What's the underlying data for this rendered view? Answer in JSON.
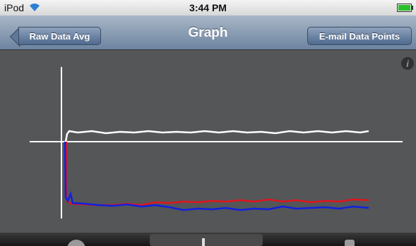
{
  "status_bar": {
    "device": "iPod",
    "time": "3:44 PM"
  },
  "nav_bar": {
    "back_button": "Raw Data Avg",
    "title": "Graph",
    "action_button": "E-mail Data Points"
  }
}
